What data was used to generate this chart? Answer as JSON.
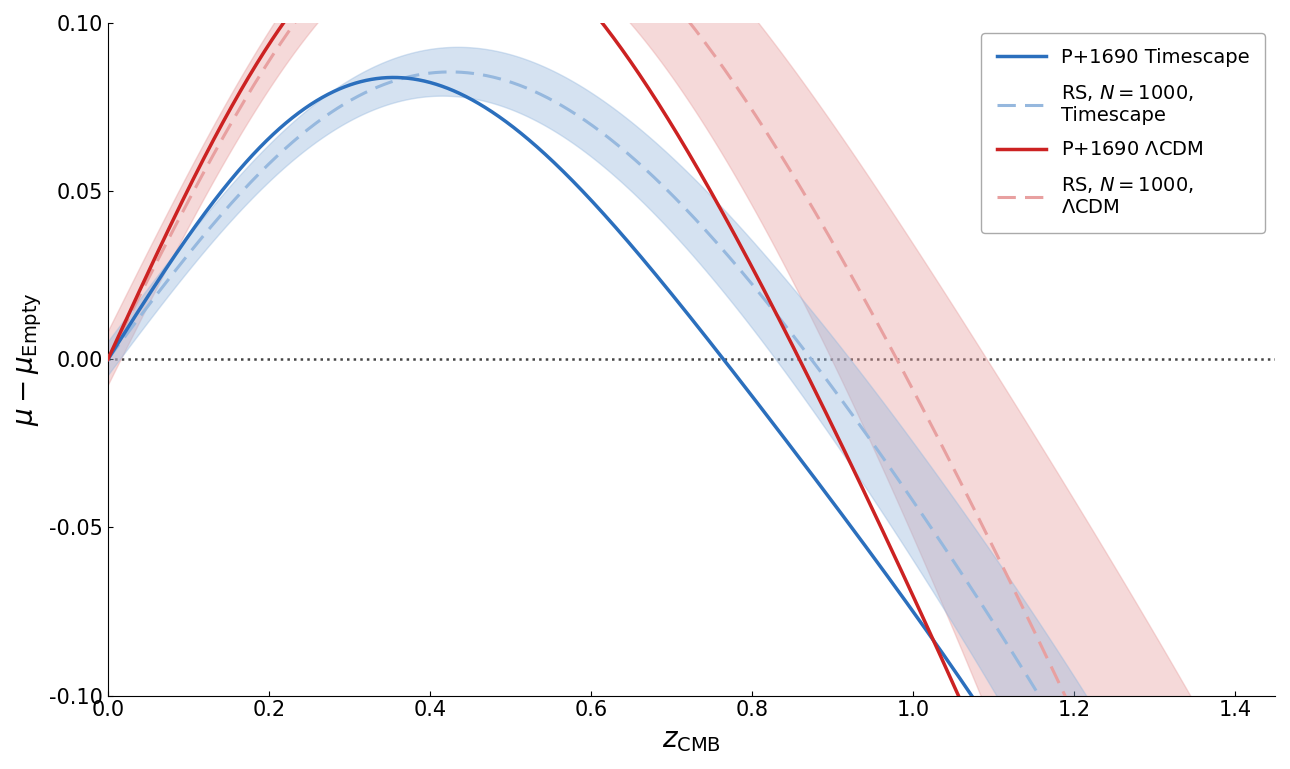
{
  "xlabel": "$z_{\\mathrm{CMB}}$",
  "ylabel": "$\\mu - \\mu_{\\mathrm{Empty}}$",
  "xlim": [
    0.0,
    1.45
  ],
  "ylim": [
    -0.1,
    0.1
  ],
  "xticks": [
    0.0,
    0.2,
    0.4,
    0.6,
    0.8,
    1.0,
    1.2,
    1.4
  ],
  "yticks": [
    -0.1,
    -0.05,
    0.0,
    0.05,
    0.1
  ],
  "blue_color": "#2b6fbd",
  "blue_light_color": "#96b8de",
  "red_color": "#cc2222",
  "red_light_color": "#e8a0a0",
  "legend_entries": [
    "P+1690 Timescape",
    "RS, $N = 1000$,\nTimescape",
    "P+1690 $\\Lambda$CDM",
    "RS, $N = 1000$,\n$\\Lambda$CDM"
  ],
  "figsize": [
    12.9,
    7.69
  ],
  "dpi": 100
}
